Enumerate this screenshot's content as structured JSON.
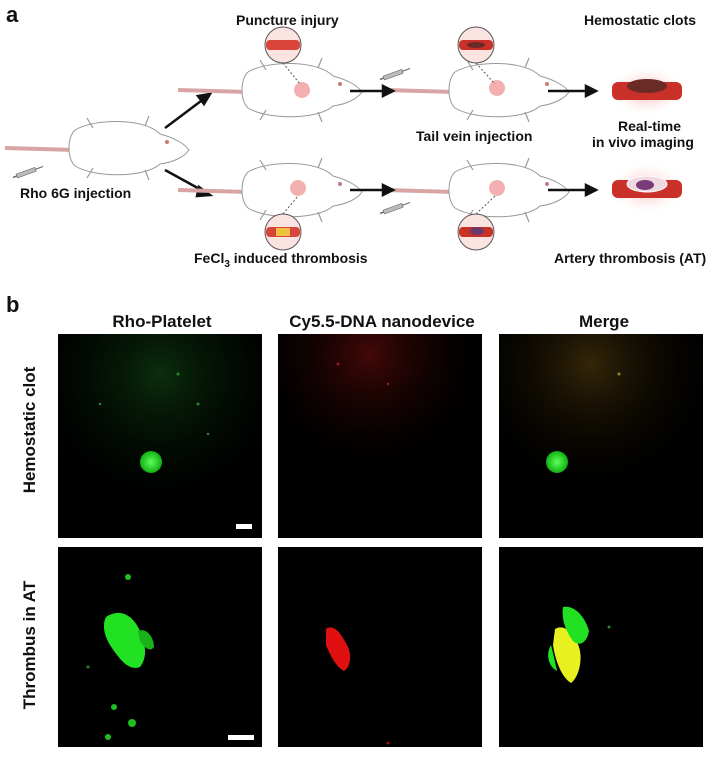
{
  "panel_a": {
    "letter": "a",
    "labels": {
      "puncture_injury": "Puncture injury",
      "hemostatic_clots": "Hemostatic clots",
      "tail_vein_injection": "Tail vein injection",
      "real_time_line1": "Real-time",
      "real_time_line2": "in vivo imaging",
      "rho_injection": "Rho 6G injection",
      "fecl_prefix": "FeCl",
      "fecl_sub": "3",
      "fecl_suffix": " induced thrombosis",
      "artery_thrombosis": "Artery thrombosis (AT)"
    }
  },
  "panel_b": {
    "letter": "b",
    "columns": [
      "Rho-Platelet",
      "Cy5.5-DNA nanodevice",
      "Merge"
    ],
    "rows": [
      "Hemostatic clot",
      "Thrombus in AT"
    ]
  },
  "colors": {
    "green_signal": "#22e022",
    "red_signal": "#e01010",
    "merge_yellow": "#e8f020",
    "vessel_red": "#c83028"
  }
}
